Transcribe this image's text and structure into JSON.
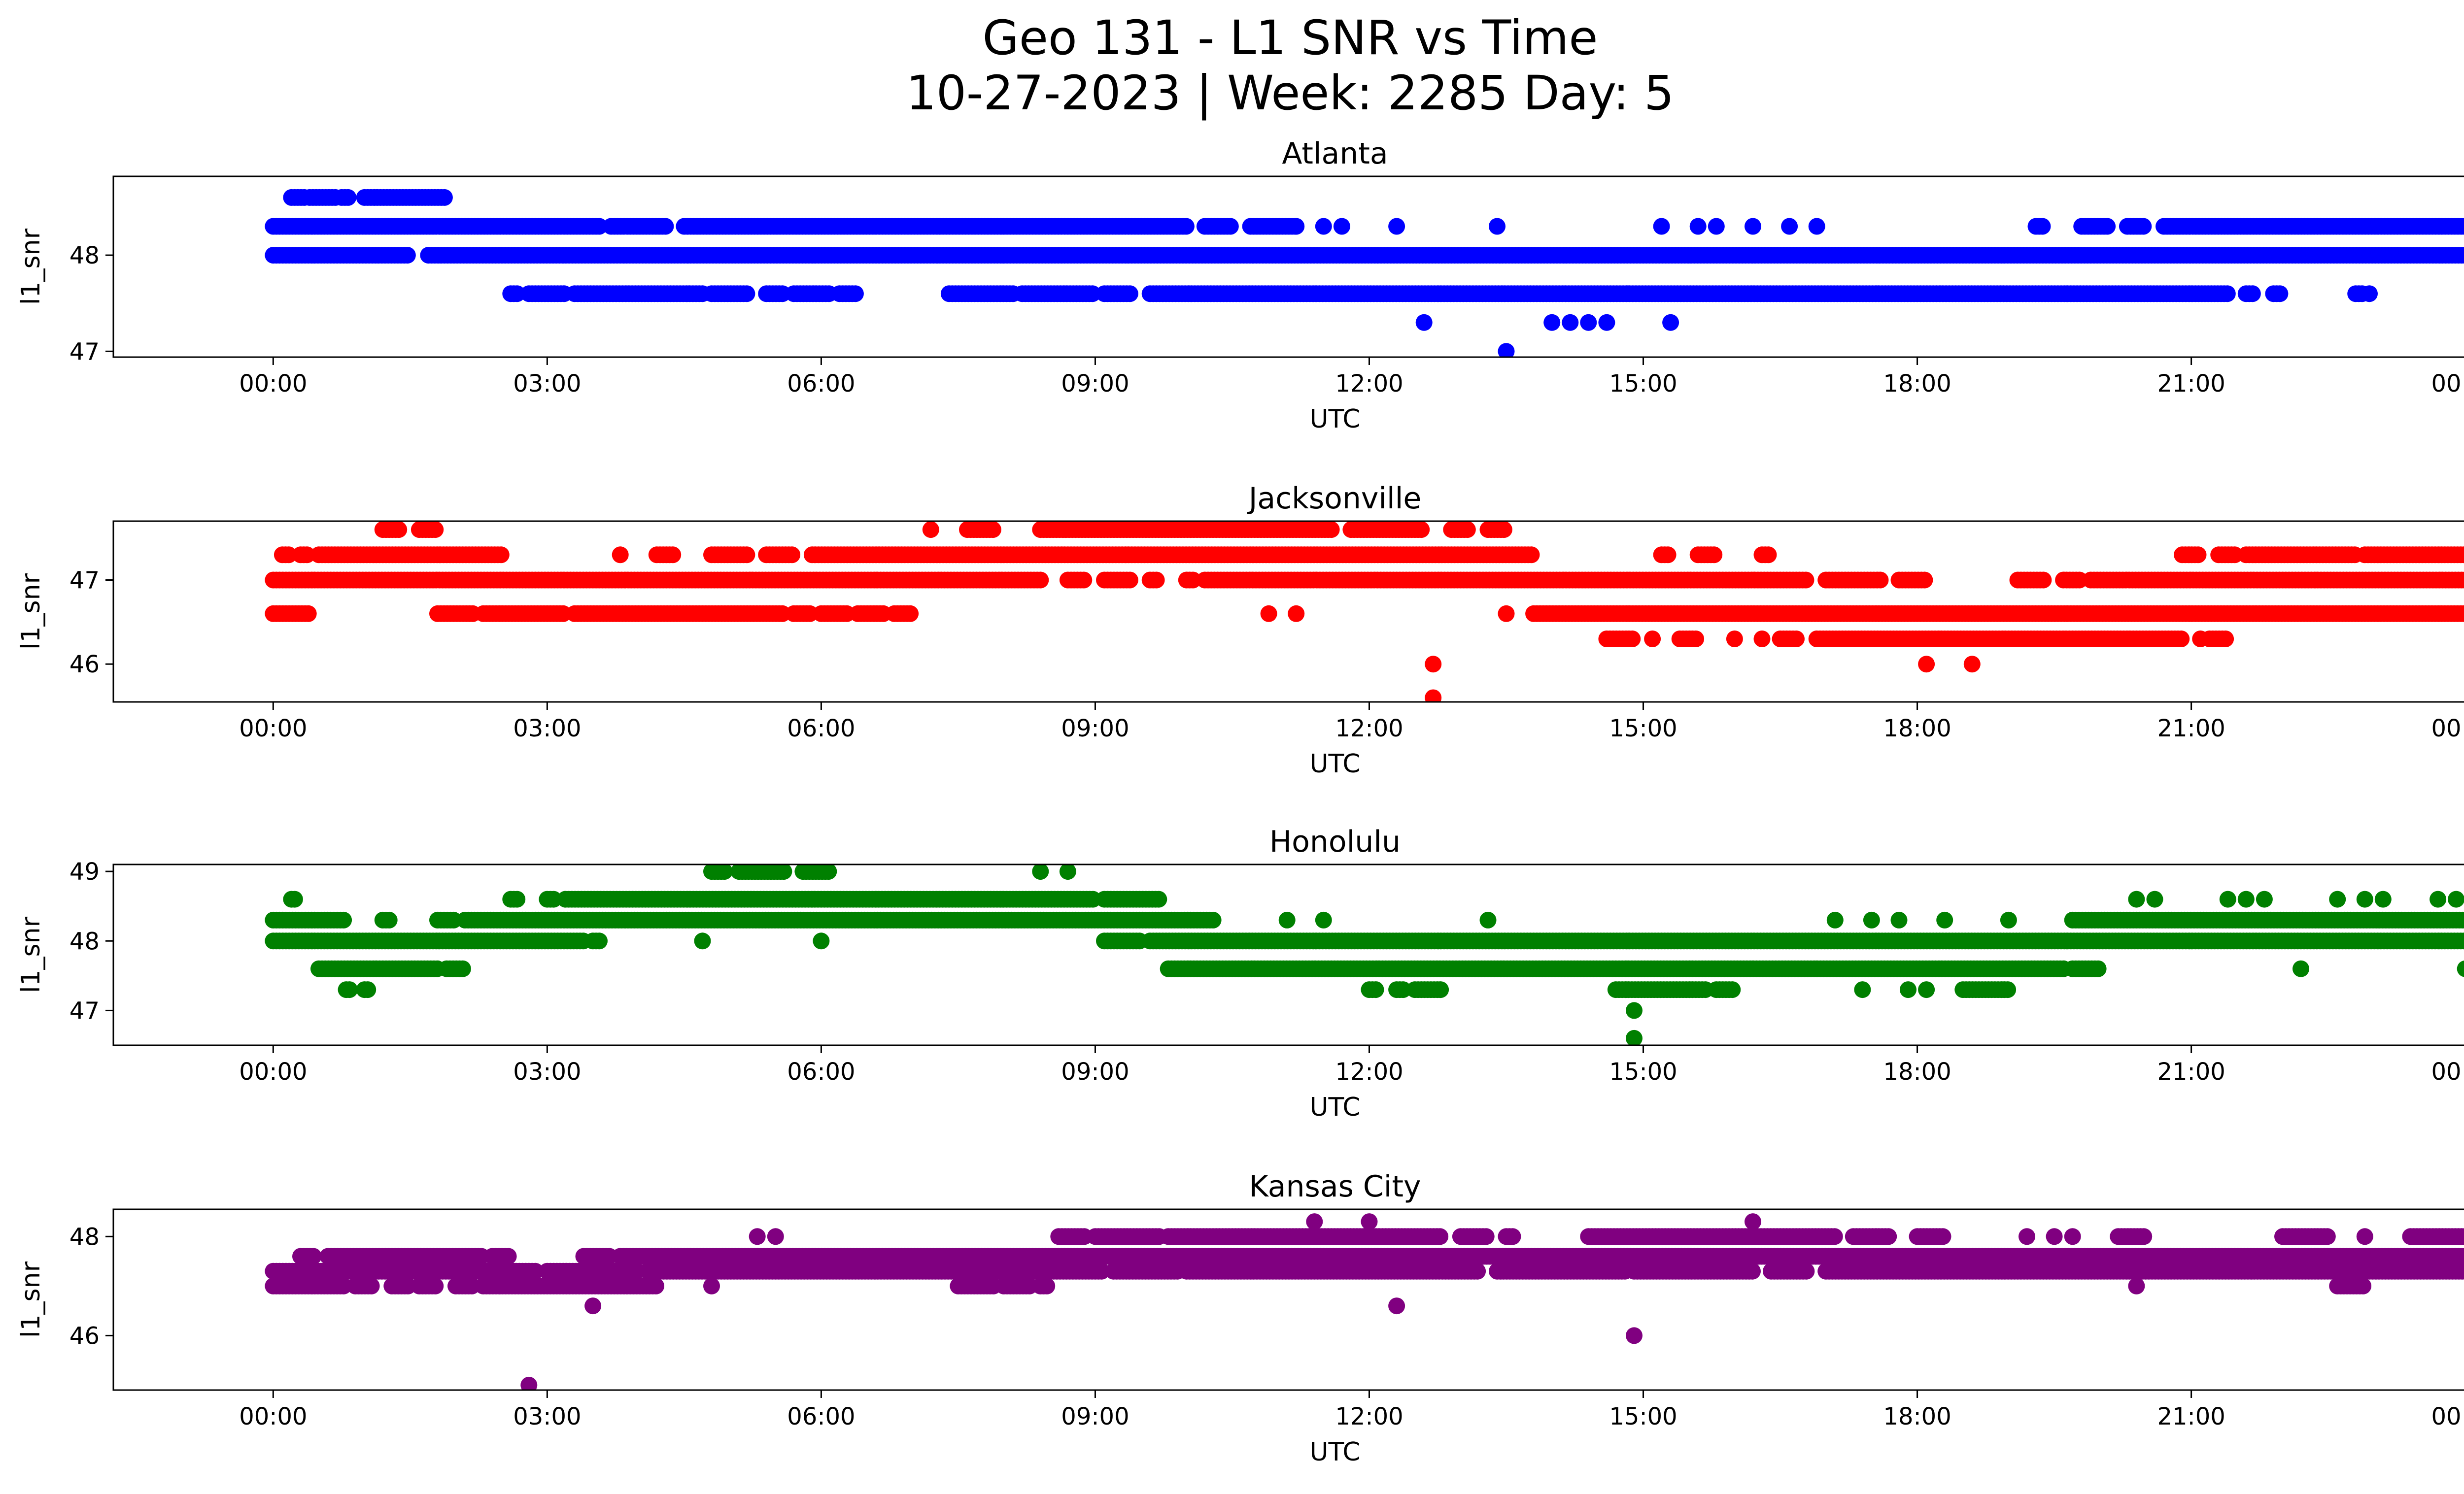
{
  "figure": {
    "title_line1": "Geo 131 - L1 SNR vs Time",
    "title_line2": "10-27-2023 | Week: 2285 Day: 5"
  },
  "chart_data": [
    {
      "type": "scatter",
      "title": "Atlanta",
      "xlabel": "UTC",
      "ylabel": "l1_snr",
      "color": "#0000ff",
      "xlim": [
        -1.75,
        25.0
      ],
      "ylim": [
        46.94,
        48.82
      ],
      "xticks": [
        "00:00",
        "03:00",
        "06:00",
        "09:00",
        "12:00",
        "15:00",
        "18:00",
        "21:00",
        "00:00"
      ],
      "yticks": [
        47,
        48
      ],
      "bands": [
        {
          "y": 48.6,
          "segments": [
            [
              0.2,
              0.35
            ],
            [
              0.4,
              0.7
            ],
            [
              0.75,
              0.85
            ],
            [
              1.0,
              1.9
            ]
          ]
        },
        {
          "y": 48.3,
          "segments": [
            [
              0.0,
              3.6
            ],
            [
              3.7,
              4.3
            ],
            [
              4.5,
              10.0
            ],
            [
              10.2,
              10.5
            ],
            [
              10.7,
              11.2
            ],
            [
              19.3,
              19.4
            ],
            [
              19.8,
              20.1
            ],
            [
              20.3,
              20.5
            ],
            [
              20.7,
              24.0
            ]
          ]
        },
        {
          "y": 48.0,
          "segments": [
            [
              0.0,
              1.5
            ],
            [
              1.7,
              24.0
            ]
          ]
        },
        {
          "y": 47.6,
          "segments": [
            [
              2.6,
              2.7
            ],
            [
              2.8,
              3.2
            ],
            [
              3.3,
              4.7
            ],
            [
              4.8,
              5.2
            ],
            [
              5.4,
              5.6
            ],
            [
              5.7,
              6.1
            ],
            [
              6.2,
              6.4
            ],
            [
              7.4,
              8.1
            ],
            [
              8.2,
              9.0
            ],
            [
              9.1,
              9.4
            ],
            [
              9.6,
              21.4
            ],
            [
              21.6,
              21.7
            ],
            [
              21.9,
              22.0
            ],
            [
              22.8,
              22.9
            ]
          ]
        }
      ],
      "singles": [
        {
          "x": 11.2,
          "y": 48.3
        },
        {
          "x": 11.5,
          "y": 48.3
        },
        {
          "x": 11.7,
          "y": 48.3
        },
        {
          "x": 12.3,
          "y": 48.3
        },
        {
          "x": 13.4,
          "y": 48.3
        },
        {
          "x": 15.2,
          "y": 48.3
        },
        {
          "x": 15.6,
          "y": 48.3
        },
        {
          "x": 15.8,
          "y": 48.3
        },
        {
          "x": 16.2,
          "y": 48.3
        },
        {
          "x": 16.6,
          "y": 48.3
        },
        {
          "x": 16.9,
          "y": 48.3
        },
        {
          "x": 12.6,
          "y": 47.3
        },
        {
          "x": 14.0,
          "y": 47.3
        },
        {
          "x": 14.2,
          "y": 47.3
        },
        {
          "x": 14.4,
          "y": 47.3
        },
        {
          "x": 14.6,
          "y": 47.3
        },
        {
          "x": 15.3,
          "y": 47.3
        },
        {
          "x": 13.5,
          "y": 47.0
        },
        {
          "x": 22.95,
          "y": 47.6
        }
      ]
    },
    {
      "type": "scatter",
      "title": "Jacksonville",
      "xlabel": "UTC",
      "ylabel": "l1_snr",
      "color": "#ff0000",
      "xlim": [
        -1.75,
        25.0
      ],
      "ylim": [
        45.55,
        47.7
      ],
      "xticks": [
        "00:00",
        "03:00",
        "06:00",
        "09:00",
        "12:00",
        "15:00",
        "18:00",
        "21:00",
        "00:00"
      ],
      "yticks": [
        46,
        47
      ],
      "bands": [
        {
          "y": 47.6,
          "segments": [
            [
              1.2,
              1.4
            ],
            [
              1.6,
              1.8
            ],
            [
              7.6,
              7.9
            ],
            [
              8.4,
              11.6
            ],
            [
              11.8,
              12.6
            ],
            [
              12.9,
              13.1
            ],
            [
              13.3,
              13.5
            ]
          ]
        },
        {
          "y": 47.3,
          "segments": [
            [
              0.1,
              0.2
            ],
            [
              0.3,
              0.4
            ],
            [
              0.5,
              2.5
            ],
            [
              4.2,
              4.4
            ],
            [
              4.8,
              5.2
            ],
            [
              5.4,
              5.7
            ],
            [
              5.9,
              13.8
            ],
            [
              15.2,
              15.3
            ],
            [
              15.6,
              15.8
            ],
            [
              16.3,
              16.4
            ],
            [
              20.9,
              21.1
            ],
            [
              21.3,
              21.5
            ],
            [
              21.6,
              22.8
            ],
            [
              22.9,
              24.0
            ]
          ]
        },
        {
          "y": 47.0,
          "segments": [
            [
              0.0,
              8.4
            ],
            [
              8.7,
              8.9
            ],
            [
              9.1,
              9.4
            ],
            [
              9.6,
              9.7
            ],
            [
              10.0,
              10.1
            ],
            [
              10.2,
              16.8
            ],
            [
              17.0,
              17.6
            ],
            [
              17.8,
              18.1
            ],
            [
              19.1,
              19.4
            ],
            [
              19.6,
              19.8
            ],
            [
              19.9,
              24.0
            ]
          ]
        },
        {
          "y": 46.6,
          "segments": [
            [
              0.0,
              0.4
            ],
            [
              1.8,
              2.2
            ],
            [
              2.3,
              3.2
            ],
            [
              3.3,
              5.6
            ],
            [
              5.7,
              5.9
            ],
            [
              6.0,
              6.3
            ],
            [
              6.4,
              6.7
            ],
            [
              6.8,
              7.0
            ],
            [
              13.8,
              24.0
            ]
          ]
        },
        {
          "y": 46.3,
          "segments": [
            [
              14.6,
              14.9
            ],
            [
              15.4,
              15.6
            ],
            [
              16.5,
              16.7
            ],
            [
              16.9,
              20.9
            ],
            [
              21.2,
              21.4
            ]
          ]
        }
      ],
      "singles": [
        {
          "x": 3.8,
          "y": 47.3
        },
        {
          "x": 7.2,
          "y": 47.6
        },
        {
          "x": 10.9,
          "y": 46.6
        },
        {
          "x": 11.2,
          "y": 46.6
        },
        {
          "x": 13.5,
          "y": 46.6
        },
        {
          "x": 15.1,
          "y": 46.3
        },
        {
          "x": 16.3,
          "y": 46.3
        },
        {
          "x": 16.0,
          "y": 46.3
        },
        {
          "x": 12.7,
          "y": 46.0
        },
        {
          "x": 12.7,
          "y": 45.6
        },
        {
          "x": 18.1,
          "y": 46.0
        },
        {
          "x": 18.6,
          "y": 46.0
        },
        {
          "x": 21.1,
          "y": 46.3
        },
        {
          "x": 24.0,
          "y": 46.6
        }
      ]
    },
    {
      "type": "scatter",
      "title": "Honolulu",
      "xlabel": "UTC",
      "ylabel": "l1_snr",
      "color": "#008000",
      "xlim": [
        -1.75,
        25.0
      ],
      "ylim": [
        46.5,
        49.1
      ],
      "xticks": [
        "00:00",
        "03:00",
        "06:00",
        "09:00",
        "12:00",
        "15:00",
        "18:00",
        "21:00",
        "00:00"
      ],
      "yticks": [
        47,
        48,
        49
      ],
      "bands": [
        {
          "y": 49.0,
          "segments": [
            [
              4.8,
              4.95
            ],
            [
              5.1,
              5.6
            ],
            [
              5.8,
              6.1
            ]
          ]
        },
        {
          "y": 48.6,
          "segments": [
            [
              0.2,
              0.25
            ],
            [
              2.6,
              2.7
            ],
            [
              3.0,
              3.1
            ],
            [
              3.2,
              9.0
            ],
            [
              9.1,
              9.7
            ]
          ]
        },
        {
          "y": 48.3,
          "segments": [
            [
              0.0,
              0.8
            ],
            [
              1.2,
              1.3
            ],
            [
              1.8,
              2.0
            ],
            [
              2.1,
              10.3
            ],
            [
              19.7,
              24.0
            ]
          ]
        },
        {
          "y": 48.0,
          "segments": [
            [
              0.0,
              3.4
            ],
            [
              3.5,
              3.6
            ],
            [
              9.1,
              9.5
            ],
            [
              9.6,
              24.0
            ]
          ]
        },
        {
          "y": 47.6,
          "segments": [
            [
              0.5,
              1.8
            ],
            [
              1.9,
              2.1
            ],
            [
              9.8,
              19.6
            ],
            [
              19.7,
              20.0
            ]
          ]
        },
        {
          "y": 47.3,
          "segments": [
            [
              0.8,
              0.85
            ],
            [
              1.0,
              1.05
            ],
            [
              12.0,
              12.1
            ],
            [
              12.3,
              12.4
            ],
            [
              12.5,
              12.8
            ],
            [
              14.7,
              15.7
            ],
            [
              15.8,
              16.0
            ],
            [
              18.5,
              19.0
            ]
          ]
        }
      ],
      "singles": [
        {
          "x": 4.7,
          "y": 48.0
        },
        {
          "x": 6.0,
          "y": 48.0
        },
        {
          "x": 8.4,
          "y": 49.0
        },
        {
          "x": 8.7,
          "y": 49.0
        },
        {
          "x": 11.1,
          "y": 48.3
        },
        {
          "x": 11.5,
          "y": 48.3
        },
        {
          "x": 13.3,
          "y": 48.3
        },
        {
          "x": 17.1,
          "y": 48.3
        },
        {
          "x": 17.5,
          "y": 48.3
        },
        {
          "x": 17.8,
          "y": 48.3
        },
        {
          "x": 18.3,
          "y": 48.3
        },
        {
          "x": 19.0,
          "y": 48.3
        },
        {
          "x": 20.4,
          "y": 48.6
        },
        {
          "x": 20.6,
          "y": 48.6
        },
        {
          "x": 21.4,
          "y": 48.6
        },
        {
          "x": 21.6,
          "y": 48.6
        },
        {
          "x": 21.8,
          "y": 48.6
        },
        {
          "x": 22.6,
          "y": 48.6
        },
        {
          "x": 22.9,
          "y": 48.6
        },
        {
          "x": 23.1,
          "y": 48.6
        },
        {
          "x": 23.7,
          "y": 48.6
        },
        {
          "x": 23.9,
          "y": 48.6
        },
        {
          "x": 17.4,
          "y": 47.3
        },
        {
          "x": 17.9,
          "y": 47.3
        },
        {
          "x": 18.1,
          "y": 47.3
        },
        {
          "x": 22.2,
          "y": 47.6
        },
        {
          "x": 24.0,
          "y": 47.6
        },
        {
          "x": 14.9,
          "y": 47.0
        },
        {
          "x": 14.9,
          "y": 46.6
        }
      ]
    },
    {
      "type": "scatter",
      "title": "Kansas City",
      "xlabel": "UTC",
      "ylabel": "l1_snr",
      "color": "#800080",
      "xlim": [
        -1.75,
        25.0
      ],
      "ylim": [
        44.9,
        48.55
      ],
      "xticks": [
        "00:00",
        "03:00",
        "06:00",
        "09:00",
        "12:00",
        "15:00",
        "18:00",
        "21:00",
        "00:00"
      ],
      "yticks": [
        46,
        48
      ],
      "bands": [
        {
          "y": 48.0,
          "segments": [
            [
              8.6,
              8.9
            ],
            [
              9.0,
              9.7
            ],
            [
              9.8,
              12.8
            ],
            [
              13.0,
              13.3
            ],
            [
              13.5,
              13.6
            ],
            [
              14.4,
              17.1
            ],
            [
              17.3,
              17.7
            ],
            [
              18.0,
              18.3
            ],
            [
              20.2,
              20.5
            ],
            [
              22.0,
              22.5
            ],
            [
              23.4,
              24.0
            ]
          ]
        },
        {
          "y": 47.6,
          "segments": [
            [
              0.3,
              0.45
            ],
            [
              0.6,
              2.3
            ],
            [
              2.4,
              2.6
            ],
            [
              3.4,
              3.7
            ],
            [
              3.8,
              24.0
            ]
          ]
        },
        {
          "y": 47.3,
          "segments": [
            [
              0.0,
              2.9
            ],
            [
              3.0,
              4.0
            ],
            [
              4.1,
              9.1
            ],
            [
              9.2,
              9.9
            ],
            [
              10.0,
              13.2
            ],
            [
              13.4,
              14.8
            ],
            [
              14.9,
              16.2
            ],
            [
              16.4,
              16.8
            ],
            [
              17.0,
              24.0
            ]
          ]
        },
        {
          "y": 47.0,
          "segments": [
            [
              0.0,
              0.8
            ],
            [
              0.9,
              1.1
            ],
            [
              1.3,
              1.5
            ],
            [
              1.6,
              1.8
            ],
            [
              2.0,
              2.2
            ],
            [
              2.3,
              4.2
            ],
            [
              7.5,
              7.9
            ],
            [
              8.0,
              8.3
            ],
            [
              8.4,
              8.5
            ],
            [
              22.6,
              22.9
            ]
          ]
        }
      ],
      "singles": [
        {
          "x": 5.3,
          "y": 48.0
        },
        {
          "x": 5.5,
          "y": 48.0
        },
        {
          "x": 11.4,
          "y": 48.3
        },
        {
          "x": 12.0,
          "y": 48.3
        },
        {
          "x": 16.2,
          "y": 48.3
        },
        {
          "x": 19.2,
          "y": 48.0
        },
        {
          "x": 19.5,
          "y": 48.0
        },
        {
          "x": 19.7,
          "y": 48.0
        },
        {
          "x": 22.9,
          "y": 48.0
        },
        {
          "x": 4.8,
          "y": 47.0
        },
        {
          "x": 20.4,
          "y": 47.0
        },
        {
          "x": 3.5,
          "y": 46.6
        },
        {
          "x": 12.3,
          "y": 46.6
        },
        {
          "x": 14.9,
          "y": 46.0
        },
        {
          "x": 2.8,
          "y": 45.0
        }
      ]
    }
  ]
}
